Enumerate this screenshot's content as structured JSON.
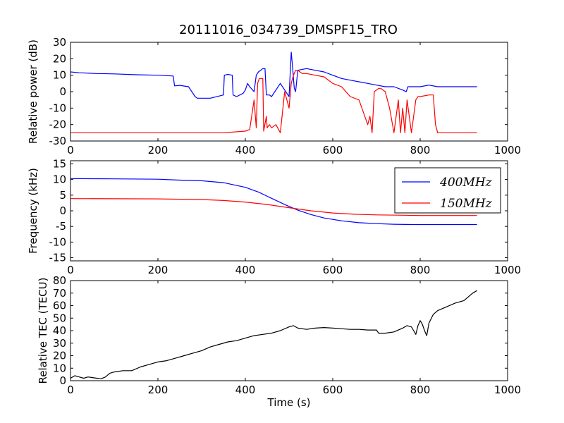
{
  "chart_data": [
    {
      "type": "line",
      "title": "20111016_034739_DMSPF15_TRO",
      "xlabel": "",
      "ylabel": "Relative power (dB)",
      "xlim": [
        0,
        1000
      ],
      "ylim": [
        -30,
        30
      ],
      "xticks": [
        0,
        200,
        400,
        600,
        800,
        1000
      ],
      "yticks": [
        -30,
        -20,
        -10,
        0,
        10,
        20,
        30
      ],
      "grid": false,
      "series": [
        {
          "color": "#0000ff",
          "x": [
            0,
            20,
            60,
            100,
            150,
            200,
            235,
            238,
            250,
            270,
            285,
            290,
            300,
            320,
            350,
            352,
            360,
            370,
            372,
            380,
            395,
            400,
            405,
            410,
            420,
            425,
            430,
            440,
            445,
            448,
            455,
            460,
            480,
            500,
            505,
            508,
            512,
            515,
            520,
            540,
            560,
            580,
            600,
            620,
            640,
            660,
            680,
            700,
            720,
            740,
            760,
            768,
            772,
            800,
            820,
            840,
            860,
            880,
            900,
            930
          ],
          "y": [
            12,
            11.5,
            11,
            10.8,
            10.3,
            10,
            9.5,
            3.5,
            3.8,
            3,
            -3,
            -4,
            -4,
            -4,
            -2,
            10,
            10.5,
            10,
            -2,
            -3,
            -1,
            1,
            5,
            3,
            0,
            10,
            12,
            14,
            14,
            -2,
            -2,
            -3,
            5,
            -3,
            24,
            15,
            2,
            0,
            13,
            14,
            13,
            12,
            10,
            8,
            7,
            6,
            5,
            4,
            3,
            3,
            1,
            0,
            3,
            3,
            4,
            3,
            3,
            3,
            3,
            3
          ]
        },
        {
          "color": "#ff0000",
          "x": [
            0,
            100,
            200,
            300,
            350,
            400,
            410,
            420,
            425,
            428,
            432,
            440,
            442,
            448,
            450,
            455,
            460,
            470,
            480,
            490,
            500,
            505,
            510,
            515,
            520,
            525,
            530,
            540,
            560,
            580,
            600,
            620,
            640,
            660,
            680,
            685,
            690,
            695,
            700,
            705,
            710,
            720,
            730,
            740,
            750,
            755,
            760,
            765,
            770,
            780,
            790,
            795,
            800,
            820,
            830,
            835,
            840,
            850,
            860,
            880,
            900,
            930
          ],
          "y": [
            -25,
            -25,
            -25,
            -25,
            -25,
            -24,
            -23,
            -5,
            -22,
            5,
            8,
            8,
            -24,
            -15,
            -22,
            -20,
            -22,
            -20,
            -25,
            0,
            -10,
            5,
            10,
            13,
            13,
            12,
            11,
            11,
            10,
            9,
            5,
            3,
            -3,
            -5,
            -20,
            -15,
            -25,
            0,
            1,
            2,
            2,
            0,
            -10,
            -25,
            -5,
            -25,
            -10,
            -25,
            -5,
            -25,
            -5,
            -3,
            -3,
            -2,
            -2,
            -20,
            -25,
            -25,
            -25,
            -25,
            -25,
            -25
          ]
        }
      ]
    },
    {
      "type": "line",
      "title": "",
      "xlabel": "",
      "ylabel": "Frequency (kHz)",
      "xlim": [
        0,
        1000
      ],
      "ylim": [
        -16,
        16
      ],
      "xticks": [
        0,
        200,
        400,
        600,
        800,
        1000
      ],
      "yticks": [
        -15,
        -10,
        -5,
        0,
        5,
        10,
        15
      ],
      "grid": false,
      "legend": "top-right",
      "series": [
        {
          "name": "400MHz",
          "color": "#0000ff",
          "x": [
            0,
            100,
            200,
            250,
            300,
            350,
            400,
            430,
            460,
            490,
            520,
            550,
            580,
            620,
            660,
            700,
            740,
            780,
            820,
            860,
            900,
            930
          ],
          "y": [
            10.3,
            10.2,
            10.1,
            9.8,
            9.6,
            9.0,
            7.5,
            6.0,
            4.0,
            2.0,
            0.2,
            -1.2,
            -2.3,
            -3.2,
            -3.8,
            -4.1,
            -4.3,
            -4.4,
            -4.4,
            -4.4,
            -4.4,
            -4.4
          ]
        },
        {
          "name": "150MHz",
          "color": "#ff0000",
          "x": [
            0,
            100,
            200,
            250,
            300,
            350,
            400,
            450,
            500,
            550,
            600,
            650,
            700,
            750,
            800,
            850,
            900,
            930
          ],
          "y": [
            3.9,
            3.85,
            3.8,
            3.7,
            3.6,
            3.3,
            2.8,
            2.0,
            1.0,
            0.0,
            -0.7,
            -1.1,
            -1.3,
            -1.4,
            -1.5,
            -1.5,
            -1.5,
            -1.5
          ]
        }
      ]
    },
    {
      "type": "line",
      "title": "",
      "xlabel": "Time (s)",
      "ylabel": "Relative TEC (TECU)",
      "xlim": [
        0,
        1000
      ],
      "ylim": [
        0,
        80
      ],
      "xticks": [
        0,
        200,
        400,
        600,
        800,
        1000
      ],
      "yticks": [
        0,
        10,
        20,
        30,
        40,
        50,
        60,
        70,
        80
      ],
      "grid": false,
      "series": [
        {
          "color": "#000000",
          "x": [
            0,
            10,
            20,
            30,
            40,
            60,
            70,
            80,
            90,
            100,
            120,
            140,
            160,
            180,
            200,
            220,
            240,
            260,
            280,
            300,
            320,
            340,
            360,
            380,
            400,
            420,
            440,
            460,
            480,
            500,
            510,
            520,
            540,
            560,
            580,
            600,
            620,
            640,
            660,
            680,
            700,
            705,
            720,
            740,
            760,
            770,
            780,
            785,
            790,
            795,
            800,
            805,
            810,
            815,
            820,
            830,
            840,
            860,
            880,
            900,
            920,
            930
          ],
          "y": [
            2,
            4,
            3,
            2,
            3,
            2,
            1.5,
            3,
            6,
            7,
            8,
            8,
            11,
            13,
            15,
            16,
            18,
            20,
            22,
            24,
            27,
            29,
            31,
            32,
            34,
            36,
            37,
            38,
            40,
            43,
            44,
            42,
            41,
            42,
            42.5,
            42,
            41.5,
            41,
            41,
            40.5,
            40.5,
            38,
            38,
            39,
            42,
            44,
            43,
            40,
            37,
            44,
            48,
            45,
            40,
            36,
            46,
            53,
            56,
            59,
            62,
            64,
            70,
            72
          ]
        }
      ]
    }
  ]
}
